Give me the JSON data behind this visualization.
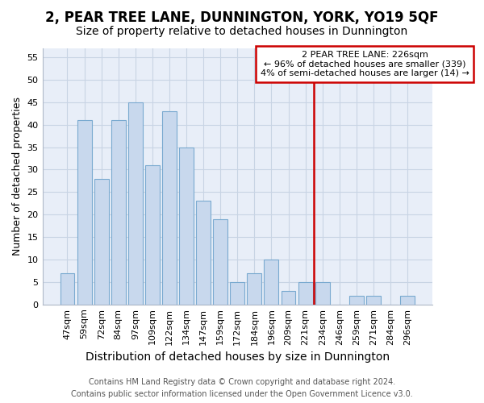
{
  "title": "2, PEAR TREE LANE, DUNNINGTON, YORK, YO19 5QF",
  "subtitle": "Size of property relative to detached houses in Dunnington",
  "xlabel": "Distribution of detached houses by size in Dunnington",
  "ylabel": "Number of detached properties",
  "footer1": "Contains HM Land Registry data © Crown copyright and database right 2024.",
  "footer2": "Contains public sector information licensed under the Open Government Licence v3.0.",
  "categories": [
    "47sqm",
    "59sqm",
    "72sqm",
    "84sqm",
    "97sqm",
    "109sqm",
    "122sqm",
    "134sqm",
    "147sqm",
    "159sqm",
    "172sqm",
    "184sqm",
    "196sqm",
    "209sqm",
    "221sqm",
    "234sqm",
    "246sqm",
    "259sqm",
    "271sqm",
    "284sqm",
    "296sqm"
  ],
  "values": [
    7,
    41,
    28,
    41,
    45,
    31,
    43,
    35,
    23,
    19,
    5,
    7,
    10,
    3,
    5,
    5,
    0,
    2,
    2,
    0,
    2
  ],
  "bar_color": "#c8d8ed",
  "bar_edge_color": "#7aaad0",
  "grid_color": "#c8d4e4",
  "background_color": "#e8eef8",
  "vline_index": 14,
  "vline_color": "#cc0000",
  "annotation_line1": "2 PEAR TREE LANE: 226sqm",
  "annotation_line2": "← 96% of detached houses are smaller (339)",
  "annotation_line3": "4% of semi-detached houses are larger (14) →",
  "annotation_box_color": "#cc0000",
  "ylim": [
    0,
    57
  ],
  "yticks": [
    0,
    5,
    10,
    15,
    20,
    25,
    30,
    35,
    40,
    45,
    50,
    55
  ],
  "title_fontsize": 12,
  "subtitle_fontsize": 10,
  "xlabel_fontsize": 10,
  "ylabel_fontsize": 9,
  "tick_fontsize": 8,
  "footer_fontsize": 7
}
